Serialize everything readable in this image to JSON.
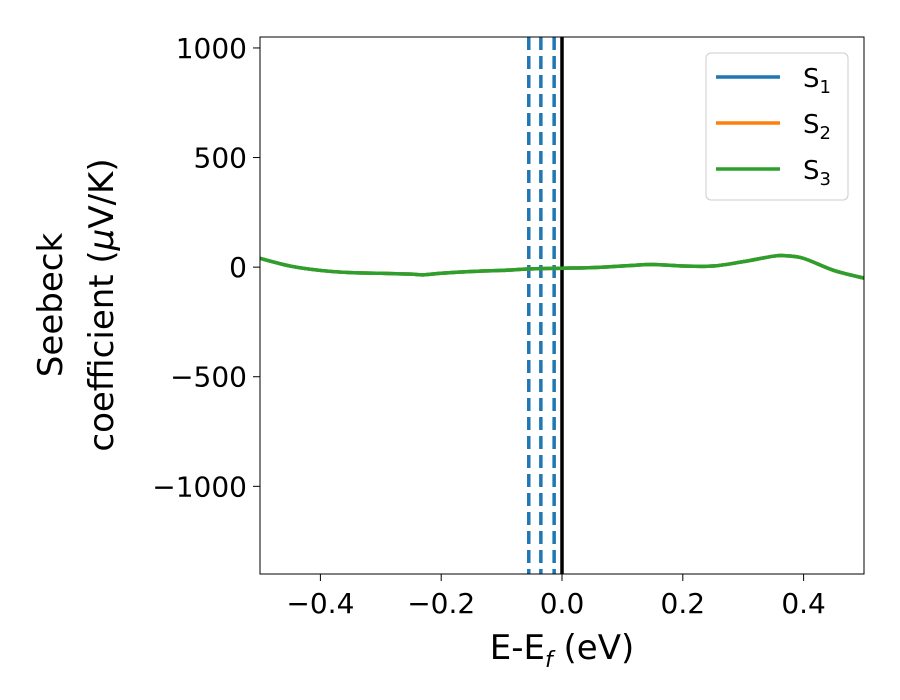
{
  "chart_data": {
    "type": "line",
    "xlabel": {
      "main": "E-E",
      "sub": "f",
      "unit": " (eV)"
    },
    "ylabel": {
      "line1": "Seebeck",
      "line2_prefix": "coefficient  (",
      "mu": "μ",
      "line2_suffix": "V/K)"
    },
    "xlim": [
      -0.5,
      0.5
    ],
    "ylim": [
      -1400,
      1050
    ],
    "xticks": [
      -0.4,
      -0.2,
      0.0,
      0.2,
      0.4
    ],
    "xtick_labels": [
      "−0.4",
      "−0.2",
      "0.0",
      "0.2",
      "0.4"
    ],
    "yticks": [
      1000,
      500,
      0,
      -500,
      -1000
    ],
    "ytick_labels": [
      "1000",
      "500",
      "0",
      "−500",
      "−1000"
    ],
    "legend_placement": "top-right",
    "grid": false,
    "series": [
      {
        "name": "S",
        "sub": "1",
        "color": "#1f77b4",
        "x": [
          -0.5,
          -0.45,
          -0.4,
          -0.35,
          -0.3,
          -0.25,
          -0.23,
          -0.2,
          -0.15,
          -0.1,
          -0.05,
          0.0,
          0.05,
          0.1,
          0.15,
          0.2,
          0.25,
          0.3,
          0.35,
          0.37,
          0.4,
          0.45,
          0.5
        ],
        "y": [
          40,
          5,
          -15,
          -25,
          -28,
          -32,
          -35,
          -28,
          -20,
          -15,
          -8,
          -5,
          -2,
          5,
          12,
          5,
          5,
          25,
          50,
          52,
          40,
          -15,
          -50
        ]
      },
      {
        "name": "S",
        "sub": "2",
        "color": "#ff7f0e",
        "x": [
          -0.5,
          -0.45,
          -0.4,
          -0.35,
          -0.3,
          -0.25,
          -0.23,
          -0.2,
          -0.15,
          -0.1,
          -0.05,
          0.0,
          0.05,
          0.1,
          0.15,
          0.2,
          0.25,
          0.3,
          0.35,
          0.37,
          0.4,
          0.45,
          0.5
        ],
        "y": [
          40,
          5,
          -15,
          -25,
          -28,
          -32,
          -35,
          -28,
          -20,
          -15,
          -8,
          -5,
          -2,
          5,
          12,
          5,
          5,
          25,
          50,
          52,
          40,
          -15,
          -50
        ]
      },
      {
        "name": "S",
        "sub": "3",
        "color": "#2ca02c",
        "x": [
          -0.5,
          -0.45,
          -0.4,
          -0.35,
          -0.3,
          -0.25,
          -0.23,
          -0.2,
          -0.15,
          -0.1,
          -0.05,
          0.0,
          0.05,
          0.1,
          0.15,
          0.2,
          0.25,
          0.3,
          0.35,
          0.37,
          0.4,
          0.45,
          0.5
        ],
        "y": [
          40,
          5,
          -15,
          -25,
          -28,
          -32,
          -35,
          -28,
          -20,
          -15,
          -8,
          -5,
          -2,
          5,
          12,
          5,
          5,
          25,
          50,
          52,
          40,
          -15,
          -50
        ]
      }
    ],
    "vlines": [
      {
        "x": -0.055,
        "style": "dashed",
        "color": "#1f77b4"
      },
      {
        "x": -0.035,
        "style": "dashed",
        "color": "#1f77b4"
      },
      {
        "x": -0.013,
        "style": "dashed",
        "color": "#1f77b4"
      },
      {
        "x": 0.0,
        "style": "solid",
        "color": "#000000"
      }
    ]
  }
}
